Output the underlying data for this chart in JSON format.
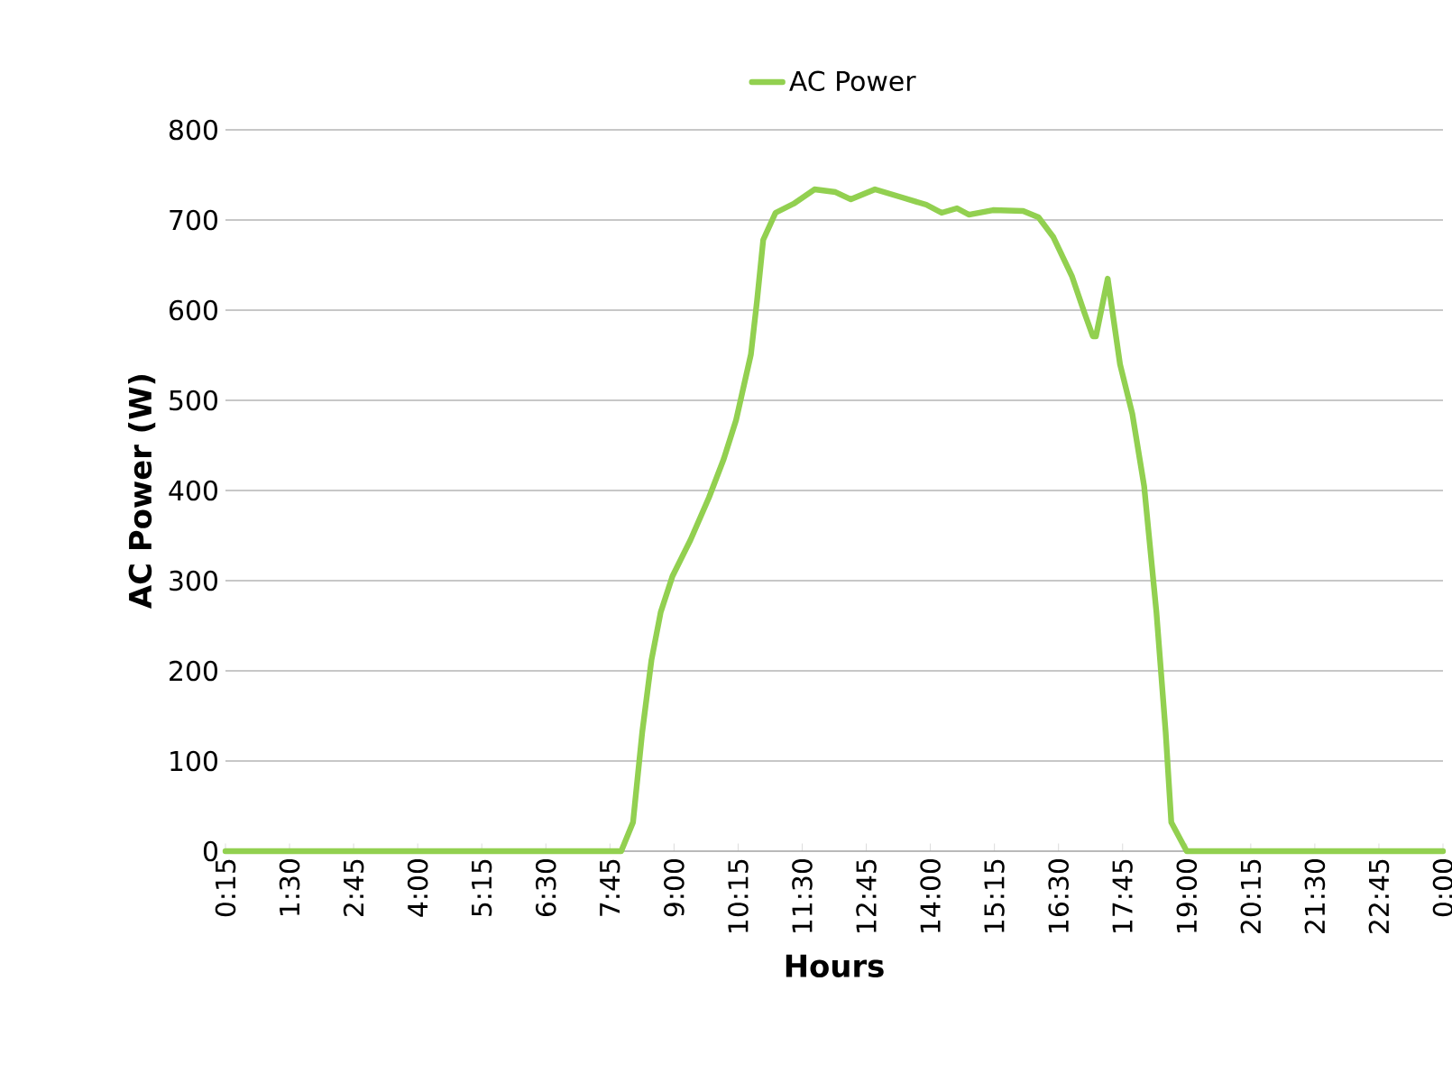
{
  "chart_data": {
    "type": "line",
    "xlabel": "Hours",
    "ylabel": "AC Power (W)",
    "ylim": [
      0,
      800
    ],
    "yticks": [
      0,
      100,
      200,
      300,
      400,
      500,
      600,
      700,
      800
    ],
    "xlim": [
      0.25,
      24
    ],
    "xticks": [
      {
        "value": 0.25,
        "label": "0:15"
      },
      {
        "value": 1.5,
        "label": "1:30"
      },
      {
        "value": 2.75,
        "label": "2:45"
      },
      {
        "value": 4,
        "label": "4:00"
      },
      {
        "value": 5.25,
        "label": "5:15"
      },
      {
        "value": 6.5,
        "label": "6:30"
      },
      {
        "value": 7.75,
        "label": "7:45"
      },
      {
        "value": 9,
        "label": "9:00"
      },
      {
        "value": 10.25,
        "label": "10:15"
      },
      {
        "value": 11.5,
        "label": "11:30"
      },
      {
        "value": 12.75,
        "label": "12:45"
      },
      {
        "value": 14,
        "label": "14:00"
      },
      {
        "value": 15.25,
        "label": "15:15"
      },
      {
        "value": 16.5,
        "label": "16:30"
      },
      {
        "value": 17.75,
        "label": "17:45"
      },
      {
        "value": 19,
        "label": "19:00"
      },
      {
        "value": 20.25,
        "label": "20:15"
      },
      {
        "value": 21.5,
        "label": "21:30"
      },
      {
        "value": 22.75,
        "label": "22:45"
      },
      {
        "value": 24,
        "label": "0:00"
      }
    ],
    "grid": "y",
    "legend": "top",
    "series": [
      {
        "name": "AC Power",
        "color": "#92d050",
        "x": [
          0.25,
          7.97,
          8.2,
          8.38,
          8.56,
          8.74,
          8.97,
          9.32,
          9.68,
          9.97,
          10.21,
          10.5,
          10.62,
          10.74,
          10.98,
          11.33,
          11.74,
          12.15,
          12.45,
          12.92,
          13.45,
          13.92,
          14.22,
          14.52,
          14.75,
          15.22,
          15.81,
          16.11,
          16.4,
          16.76,
          17.0,
          17.17,
          17.23,
          17.46,
          17.7,
          17.94,
          18.17,
          18.41,
          18.59,
          18.7,
          19.0,
          24
        ],
        "values": [
          0,
          0,
          32,
          132,
          212,
          265,
          305,
          345,
          392,
          435,
          478,
          551,
          611,
          678,
          708,
          718,
          734,
          731,
          723,
          734,
          725,
          717,
          708,
          713,
          706,
          711,
          710,
          703,
          681,
          638,
          598,
          571,
          571,
          635,
          540,
          485,
          405,
          265,
          132,
          32,
          0,
          0
        ]
      }
    ]
  }
}
